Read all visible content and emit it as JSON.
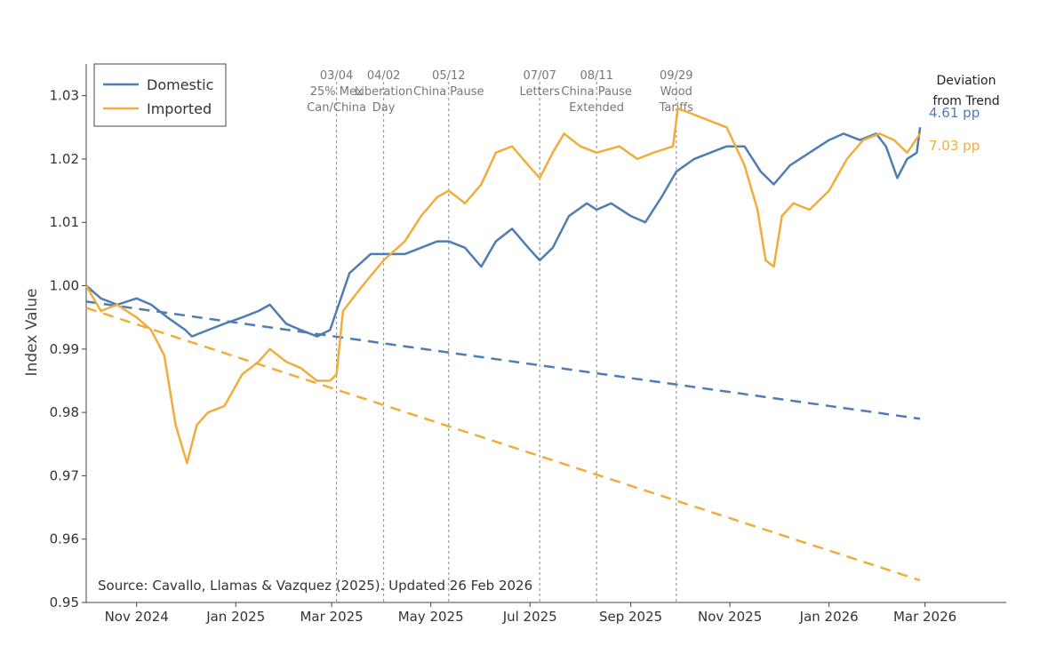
{
  "chart_data": {
    "type": "line",
    "title": "",
    "xlabel": "",
    "ylabel": "Index Value",
    "x_range": [
      "2024-10-01",
      "2026-04-20"
    ],
    "ylim": [
      0.95,
      1.035
    ],
    "y_ticks": [
      0.95,
      0.96,
      0.97,
      0.98,
      0.99,
      1.0,
      1.01,
      1.02,
      1.03
    ],
    "y_tick_labels": [
      "0.95",
      "0.96",
      "0.97",
      "0.98",
      "0.99",
      "1.00",
      "1.01",
      "1.02",
      "1.03"
    ],
    "x_ticks": [
      {
        "date": "2024-11-01",
        "label": "Nov 2024"
      },
      {
        "date": "2025-01-01",
        "label": "Jan 2025"
      },
      {
        "date": "2025-03-01",
        "label": "Mar 2025"
      },
      {
        "date": "2025-05-01",
        "label": "May 2025"
      },
      {
        "date": "2025-07-01",
        "label": "Jul 2025"
      },
      {
        "date": "2025-09-01",
        "label": "Sep 2025"
      },
      {
        "date": "2025-11-01",
        "label": "Nov 2025"
      },
      {
        "date": "2026-01-01",
        "label": "Jan 2026"
      },
      {
        "date": "2026-03-01",
        "label": "Mar 2026"
      }
    ],
    "grid": false,
    "legend_position": "top-left",
    "series": [
      {
        "name": "Domestic",
        "color": "#4f7db3",
        "points": [
          [
            "2024-10-01",
            1.0
          ],
          [
            "2024-10-10",
            0.998
          ],
          [
            "2024-10-20",
            0.997
          ],
          [
            "2024-11-01",
            0.998
          ],
          [
            "2024-11-10",
            0.997
          ],
          [
            "2024-11-20",
            0.995
          ],
          [
            "2024-12-01",
            0.993
          ],
          [
            "2024-12-05",
            0.992
          ],
          [
            "2024-12-15",
            0.993
          ],
          [
            "2024-12-25",
            0.994
          ],
          [
            "2025-01-05",
            0.995
          ],
          [
            "2025-01-15",
            0.996
          ],
          [
            "2025-01-22",
            0.997
          ],
          [
            "2025-02-01",
            0.994
          ],
          [
            "2025-02-10",
            0.993
          ],
          [
            "2025-02-20",
            0.992
          ],
          [
            "2025-02-28",
            0.993
          ],
          [
            "2025-03-04",
            0.996
          ],
          [
            "2025-03-12",
            1.002
          ],
          [
            "2025-03-25",
            1.005
          ],
          [
            "2025-04-02",
            1.005
          ],
          [
            "2025-04-15",
            1.005
          ],
          [
            "2025-04-25",
            1.006
          ],
          [
            "2025-05-05",
            1.007
          ],
          [
            "2025-05-12",
            1.007
          ],
          [
            "2025-05-22",
            1.006
          ],
          [
            "2025-06-01",
            1.003
          ],
          [
            "2025-06-10",
            1.007
          ],
          [
            "2025-06-20",
            1.009
          ],
          [
            "2025-06-30",
            1.006
          ],
          [
            "2025-07-07",
            1.004
          ],
          [
            "2025-07-15",
            1.006
          ],
          [
            "2025-07-25",
            1.011
          ],
          [
            "2025-08-05",
            1.013
          ],
          [
            "2025-08-11",
            1.012
          ],
          [
            "2025-08-20",
            1.013
          ],
          [
            "2025-09-01",
            1.011
          ],
          [
            "2025-09-10",
            1.01
          ],
          [
            "2025-09-20",
            1.014
          ],
          [
            "2025-09-29",
            1.018
          ],
          [
            "2025-10-10",
            1.02
          ],
          [
            "2025-10-20",
            1.021
          ],
          [
            "2025-10-30",
            1.022
          ],
          [
            "2025-11-10",
            1.022
          ],
          [
            "2025-11-20",
            1.018
          ],
          [
            "2025-11-28",
            1.016
          ],
          [
            "2025-12-08",
            1.019
          ],
          [
            "2025-12-20",
            1.021
          ],
          [
            "2026-01-01",
            1.023
          ],
          [
            "2026-01-10",
            1.024
          ],
          [
            "2026-01-20",
            1.023
          ],
          [
            "2026-01-30",
            1.024
          ],
          [
            "2026-02-05",
            1.022
          ],
          [
            "2026-02-12",
            1.017
          ],
          [
            "2026-02-18",
            1.02
          ],
          [
            "2026-02-24",
            1.021
          ],
          [
            "2026-02-26",
            1.025
          ]
        ]
      },
      {
        "name": "Imported",
        "color": "#f0ad3b",
        "points": [
          [
            "2024-10-01",
            1.0
          ],
          [
            "2024-10-10",
            0.996
          ],
          [
            "2024-10-20",
            0.997
          ],
          [
            "2024-11-01",
            0.995
          ],
          [
            "2024-11-10",
            0.993
          ],
          [
            "2024-11-18",
            0.989
          ],
          [
            "2024-11-25",
            0.978
          ],
          [
            "2024-12-02",
            0.972
          ],
          [
            "2024-12-08",
            0.978
          ],
          [
            "2024-12-15",
            0.98
          ],
          [
            "2024-12-25",
            0.981
          ],
          [
            "2025-01-05",
            0.986
          ],
          [
            "2025-01-15",
            0.988
          ],
          [
            "2025-01-22",
            0.99
          ],
          [
            "2025-02-01",
            0.988
          ],
          [
            "2025-02-10",
            0.987
          ],
          [
            "2025-02-20",
            0.985
          ],
          [
            "2025-02-28",
            0.985
          ],
          [
            "2025-03-04",
            0.986
          ],
          [
            "2025-03-08",
            0.996
          ],
          [
            "2025-03-20",
            1.0
          ],
          [
            "2025-04-02",
            1.004
          ],
          [
            "2025-04-15",
            1.007
          ],
          [
            "2025-04-25",
            1.011
          ],
          [
            "2025-05-05",
            1.014
          ],
          [
            "2025-05-12",
            1.015
          ],
          [
            "2025-05-22",
            1.013
          ],
          [
            "2025-06-01",
            1.016
          ],
          [
            "2025-06-10",
            1.021
          ],
          [
            "2025-06-20",
            1.022
          ],
          [
            "2025-06-30",
            1.019
          ],
          [
            "2025-07-07",
            1.017
          ],
          [
            "2025-07-15",
            1.021
          ],
          [
            "2025-07-22",
            1.024
          ],
          [
            "2025-08-01",
            1.022
          ],
          [
            "2025-08-11",
            1.021
          ],
          [
            "2025-08-25",
            1.022
          ],
          [
            "2025-09-05",
            1.02
          ],
          [
            "2025-09-15",
            1.021
          ],
          [
            "2025-09-27",
            1.022
          ],
          [
            "2025-09-30",
            1.028
          ],
          [
            "2025-10-10",
            1.027
          ],
          [
            "2025-10-20",
            1.026
          ],
          [
            "2025-10-30",
            1.025
          ],
          [
            "2025-11-10",
            1.019
          ],
          [
            "2025-11-18",
            1.012
          ],
          [
            "2025-11-23",
            1.004
          ],
          [
            "2025-11-28",
            1.003
          ],
          [
            "2025-12-03",
            1.011
          ],
          [
            "2025-12-10",
            1.013
          ],
          [
            "2025-12-20",
            1.012
          ],
          [
            "2026-01-01",
            1.015
          ],
          [
            "2026-01-12",
            1.02
          ],
          [
            "2026-01-22",
            1.023
          ],
          [
            "2026-02-01",
            1.024
          ],
          [
            "2026-02-10",
            1.023
          ],
          [
            "2026-02-18",
            1.021
          ],
          [
            "2026-02-26",
            1.024
          ]
        ]
      }
    ],
    "trend_lines": [
      {
        "series": "Domestic",
        "color": "#4f7db3",
        "dash": "dashed",
        "points": [
          [
            "2024-10-01",
            0.9975
          ],
          [
            "2026-02-26",
            0.979
          ]
        ]
      },
      {
        "series": "Imported",
        "color": "#f0ad3b",
        "dash": "dashed",
        "points": [
          [
            "2024-10-01",
            0.9965
          ],
          [
            "2026-02-26",
            0.9535
          ]
        ]
      }
    ],
    "events": [
      {
        "date": "2025-03-04",
        "label_lines": [
          "03/04",
          "25% Mex",
          "Can/China"
        ]
      },
      {
        "date": "2025-04-02",
        "label_lines": [
          "04/02",
          "Liberation",
          "Day"
        ]
      },
      {
        "date": "2025-05-12",
        "label_lines": [
          "05/12",
          "China Pause"
        ]
      },
      {
        "date": "2025-07-07",
        "label_lines": [
          "07/07",
          "Letters"
        ]
      },
      {
        "date": "2025-08-11",
        "label_lines": [
          "08/11",
          "China Pause",
          "Extended"
        ]
      },
      {
        "date": "2025-09-29",
        "label_lines": [
          "09/29",
          "Wood",
          "Tariffs"
        ]
      }
    ],
    "deviation": {
      "title_lines": [
        "Deviation",
        "from Trend"
      ],
      "values": [
        {
          "series": "Domestic",
          "label": "4.61 pp",
          "color": "#4f7db3"
        },
        {
          "series": "Imported",
          "label": "7.03 pp",
          "color": "#f0ad3b"
        }
      ]
    },
    "source": "Source: Cavallo, Llamas & Vazquez (2025). Updated 26 Feb 2026"
  }
}
